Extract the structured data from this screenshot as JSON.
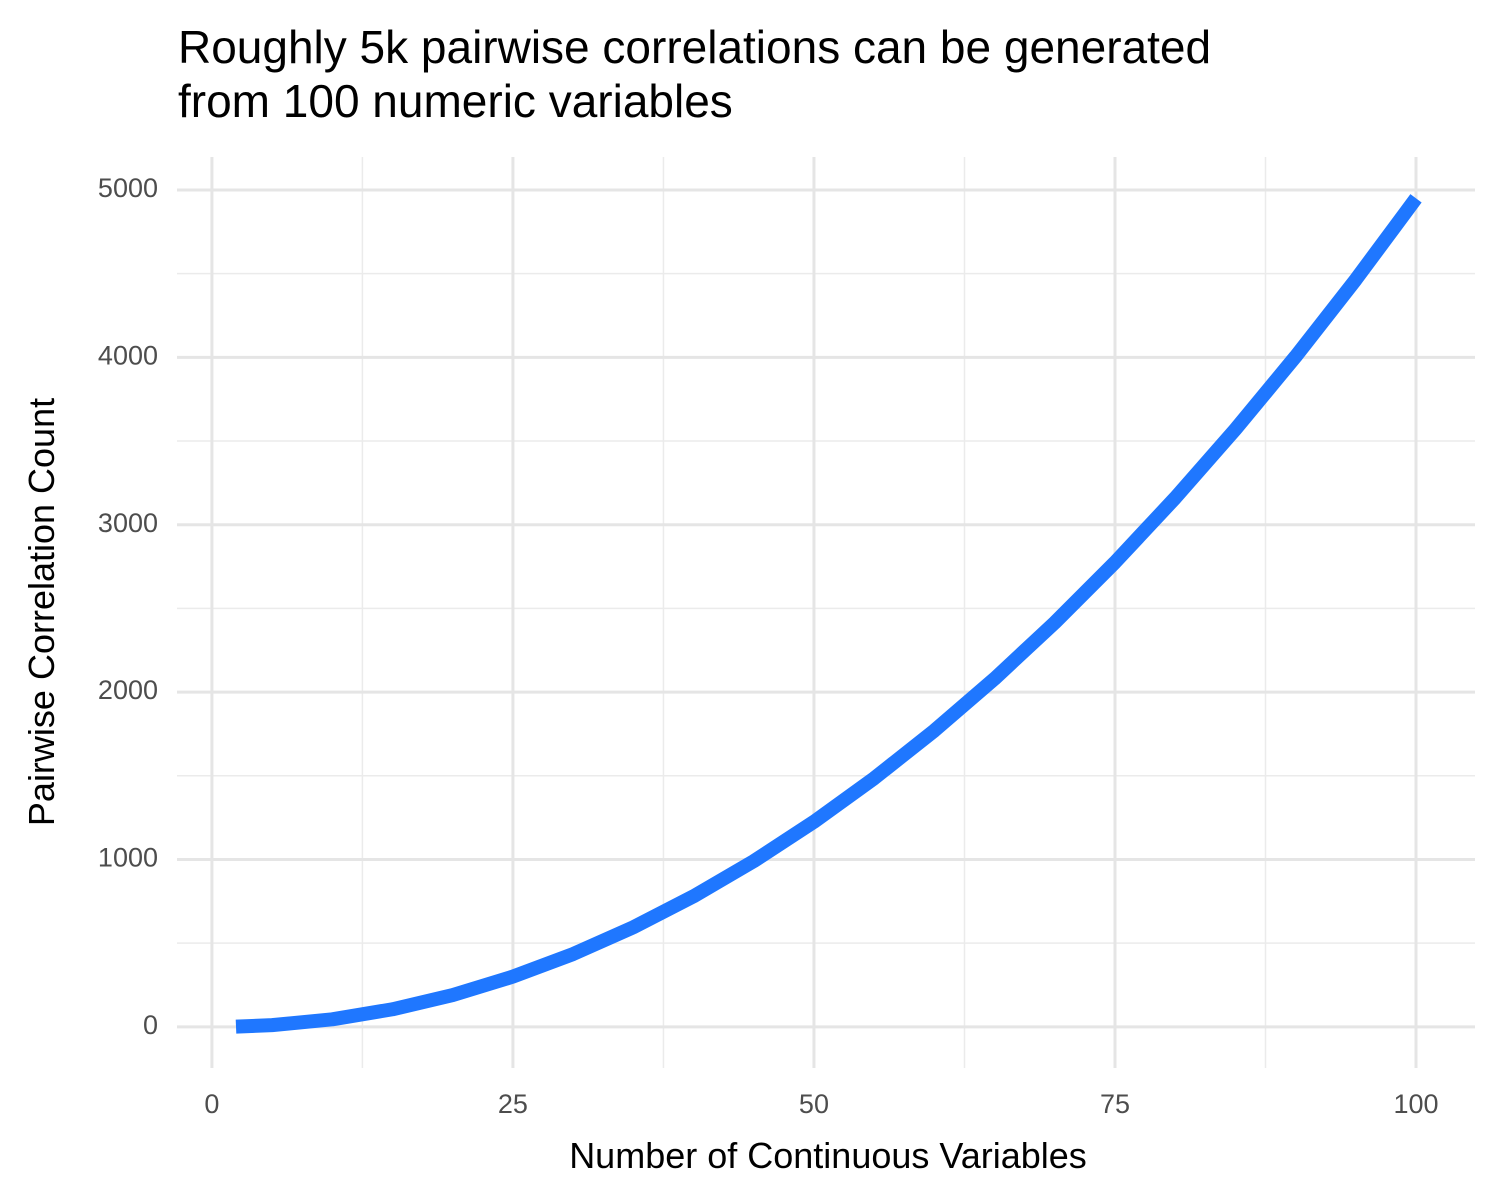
{
  "chart_data": {
    "type": "line",
    "title": "Roughly 5k pairwise correlations can be generated from 100 numeric variables",
    "x_label": "Number of Continuous Variables",
    "y_label": "Pairwise Correlation Count",
    "x": [
      2,
      5,
      10,
      15,
      20,
      25,
      30,
      35,
      40,
      45,
      50,
      55,
      60,
      65,
      70,
      75,
      80,
      85,
      90,
      95,
      100
    ],
    "values": [
      1,
      10,
      45,
      105,
      190,
      300,
      435,
      595,
      780,
      990,
      1225,
      1485,
      1770,
      2080,
      2415,
      2775,
      3160,
      3570,
      4005,
      4465,
      4950
    ],
    "color": "#1f77ff",
    "xlim": [
      -2.9,
      104.9
    ],
    "ylim": [
      -246,
      5197
    ],
    "xticks": [
      0,
      25,
      50,
      75,
      100
    ],
    "yticks": [
      0,
      1000,
      2000,
      3000,
      4000,
      5000
    ],
    "xminor_ticks": [
      12.5,
      37.5,
      62.5,
      87.5
    ],
    "yminor_ticks": [
      500,
      1500,
      2500,
      3500,
      4500
    ],
    "grid": true
  }
}
